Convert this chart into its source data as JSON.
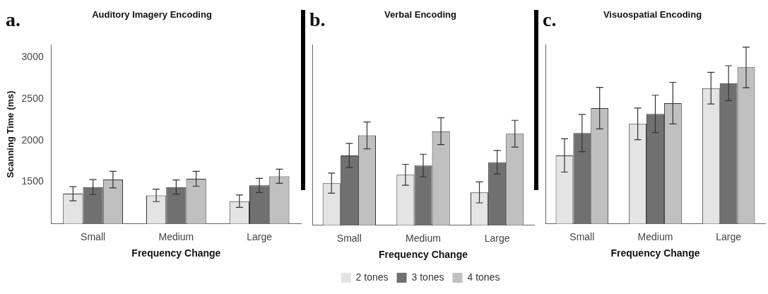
{
  "chart_data": [
    {
      "type": "bar",
      "title": "Auditory Imagery Encoding",
      "annotations": [
        "a."
      ],
      "xlabel": "Frequency Change",
      "ylabel": "Scanning Time (ms)",
      "categories": [
        "Small",
        "Medium",
        "Large"
      ],
      "ylim": [
        1000,
        3150
      ],
      "yticks": [
        1500,
        2000,
        2500,
        3000
      ],
      "series": [
        {
          "color": "#e4e4e4",
          "values": [
            1360,
            1340,
            1270
          ],
          "errors": [
            85,
            75,
            75
          ]
        },
        {
          "color": "#707070",
          "values": [
            1440,
            1440,
            1460
          ],
          "errors": [
            90,
            85,
            85
          ]
        },
        {
          "color": "#c0c0c0",
          "values": [
            1530,
            1540,
            1570
          ],
          "errors": [
            100,
            90,
            85
          ]
        }
      ]
    },
    {
      "type": "bar",
      "title": "Verbal Encoding",
      "annotations": [
        "b."
      ],
      "xlabel": "Frequency Change",
      "categories": [
        "Small",
        "Medium",
        "Large"
      ],
      "ylim": [
        1000,
        3150
      ],
      "tick_labels": "x",
      "legend": "bottom",
      "series": [
        {
          "name": "2 tones",
          "color": "#e4e4e4",
          "values": [
            1500,
            1600,
            1390
          ],
          "errors": [
            120,
            125,
            125
          ]
        },
        {
          "name": "3 tones",
          "color": "#707070",
          "values": [
            1830,
            1710,
            1750
          ],
          "errors": [
            145,
            135,
            140
          ]
        },
        {
          "name": "4 tones",
          "color": "#c0c0c0",
          "values": [
            2070,
            2120,
            2090
          ],
          "errors": [
            160,
            160,
            160
          ]
        }
      ]
    },
    {
      "type": "bar",
      "title": "Visuospatial Encoding",
      "annotations": [
        "c."
      ],
      "xlabel": "Frequency Change",
      "categories": [
        "Small",
        "Medium",
        "Large"
      ],
      "ylim": [
        1000,
        3150
      ],
      "tick_labels": "x",
      "series": [
        {
          "color": "#e4e4e4",
          "values": [
            1820,
            2200,
            2630
          ],
          "errors": [
            200,
            190,
            190
          ]
        },
        {
          "color": "#707070",
          "values": [
            2090,
            2320,
            2690
          ],
          "errors": [
            225,
            225,
            210
          ]
        },
        {
          "color": "#c0c0c0",
          "values": [
            2390,
            2450,
            2880
          ],
          "errors": [
            250,
            250,
            245
          ]
        }
      ]
    }
  ]
}
